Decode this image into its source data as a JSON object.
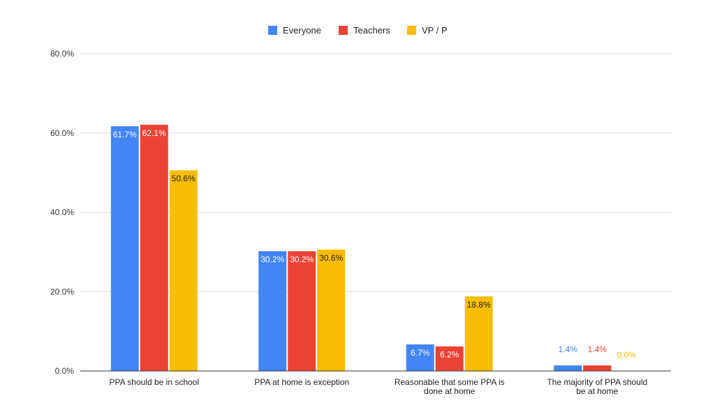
{
  "chart_data": {
    "type": "bar",
    "title": "",
    "xlabel": "",
    "ylabel": "",
    "ylim": [
      0,
      80
    ],
    "yticks": [
      "0.0%",
      "20.0%",
      "40.0%",
      "60.0%",
      "80.0%"
    ],
    "ytick_values": [
      0,
      20,
      40,
      60,
      80
    ],
    "grid": true,
    "legend_position": "top-center",
    "categories": [
      [
        "PPA should be in school"
      ],
      [
        "PPA at home is exception"
      ],
      [
        "Reasonable that some PPA is",
        "done at home"
      ],
      [
        "The majority of PPA should",
        "be at home"
      ]
    ],
    "series": [
      {
        "name": "Everyone",
        "color": "#4285F4",
        "values": [
          61.7,
          30.2,
          6.7,
          1.4
        ],
        "labels": [
          "61.7%",
          "30.2%",
          "6.7%",
          "1.4%"
        ]
      },
      {
        "name": "Teachers",
        "color": "#EA4335",
        "values": [
          62.1,
          30.2,
          6.2,
          1.4
        ],
        "labels": [
          "62.1%",
          "30.2%",
          "6.2%",
          "1.4%"
        ]
      },
      {
        "name": "VP / P",
        "color": "#FBBC04",
        "values": [
          50.6,
          30.6,
          18.8,
          0.0
        ],
        "labels": [
          "50.6%",
          "30.6%",
          "18.8%",
          "0.0%"
        ]
      }
    ]
  }
}
